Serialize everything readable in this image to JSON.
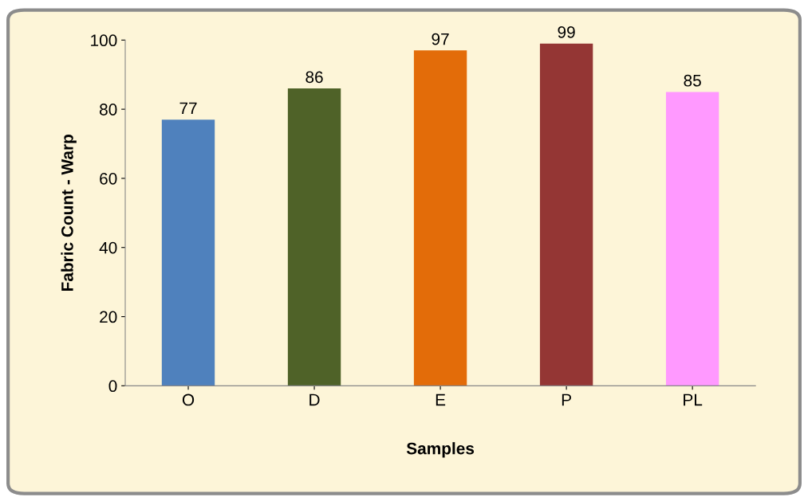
{
  "chart_data": {
    "type": "bar",
    "xlabel": "Samples",
    "ylabel": "Fabric Count - Warp",
    "categories": [
      "O",
      "D",
      "E",
      "P",
      "PL"
    ],
    "values": [
      77,
      86,
      97,
      99,
      85
    ],
    "colors": [
      "#4f81bd",
      "#4f6228",
      "#e36c09",
      "#943634",
      "#ff99ff"
    ],
    "ylim": [
      0,
      100
    ],
    "yticks": [
      0,
      20,
      40,
      60,
      80,
      100
    ],
    "grid": false,
    "data_labels": true
  }
}
